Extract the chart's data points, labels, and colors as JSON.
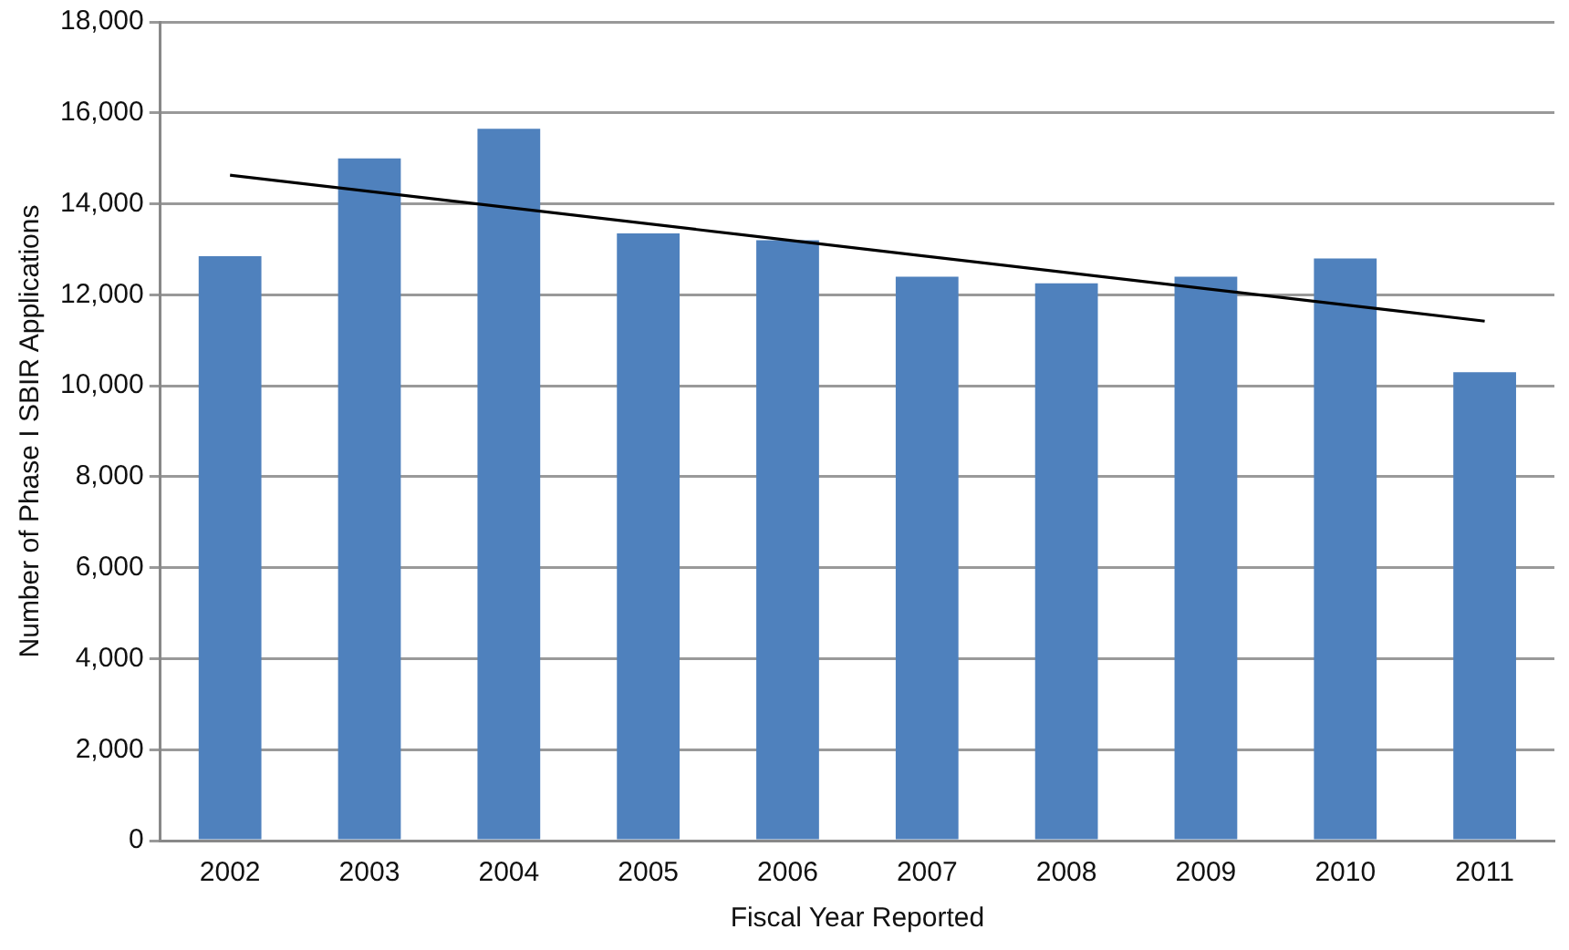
{
  "chart_data": {
    "type": "bar",
    "xlabel": "Fiscal Year Reported",
    "ylabel": "Number of Phase I SBIR Applications",
    "categories": [
      "2002",
      "2003",
      "2004",
      "2005",
      "2006",
      "2007",
      "2008",
      "2009",
      "2010",
      "2011"
    ],
    "series": [
      {
        "color": "#4f81bd",
        "values": [
          12850,
          15000,
          15650,
          13350,
          13200,
          12400,
          12250,
          12400,
          12800,
          10300
        ]
      },
      {
        "type": "line",
        "color": "#000000",
        "values": [
          14630,
          null,
          null,
          null,
          null,
          null,
          null,
          null,
          null,
          11420
        ],
        "marker": "none"
      }
    ],
    "ylim": [
      0,
      18000
    ],
    "yticks": [
      {
        "value": 0,
        "label": "0"
      },
      {
        "value": 2000,
        "label": "2,000"
      },
      {
        "value": 4000,
        "label": "4,000"
      },
      {
        "value": 6000,
        "label": "6,000"
      },
      {
        "value": 8000,
        "label": "8,000"
      },
      {
        "value": 10000,
        "label": "10,000"
      },
      {
        "value": 12000,
        "label": "12,000"
      },
      {
        "value": 14000,
        "label": "14,000"
      },
      {
        "value": 16000,
        "label": "16,000"
      },
      {
        "value": 18000,
        "label": "18,000"
      }
    ],
    "grid": "y",
    "legend": false
  }
}
